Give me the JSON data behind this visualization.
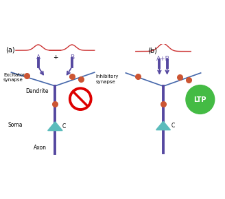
{
  "bg_color": "#ffffff",
  "panel_a_label": "(a)",
  "panel_b_label": "(b)",
  "purple_color": "#6655aa",
  "dark_purple": "#5548a0",
  "dendrite_color": "#5548a0",
  "synapse_line_color": "#4466aa",
  "soma_color": "#5bbcbc",
  "ltp_color": "#44bb44",
  "ltp_text": "LTP",
  "dot_color": "#cc5533",
  "signal_color": "#cc3333",
  "no_sign_red": "#dd0000",
  "text_color": "#000000",
  "purple_text": "#6655aa"
}
